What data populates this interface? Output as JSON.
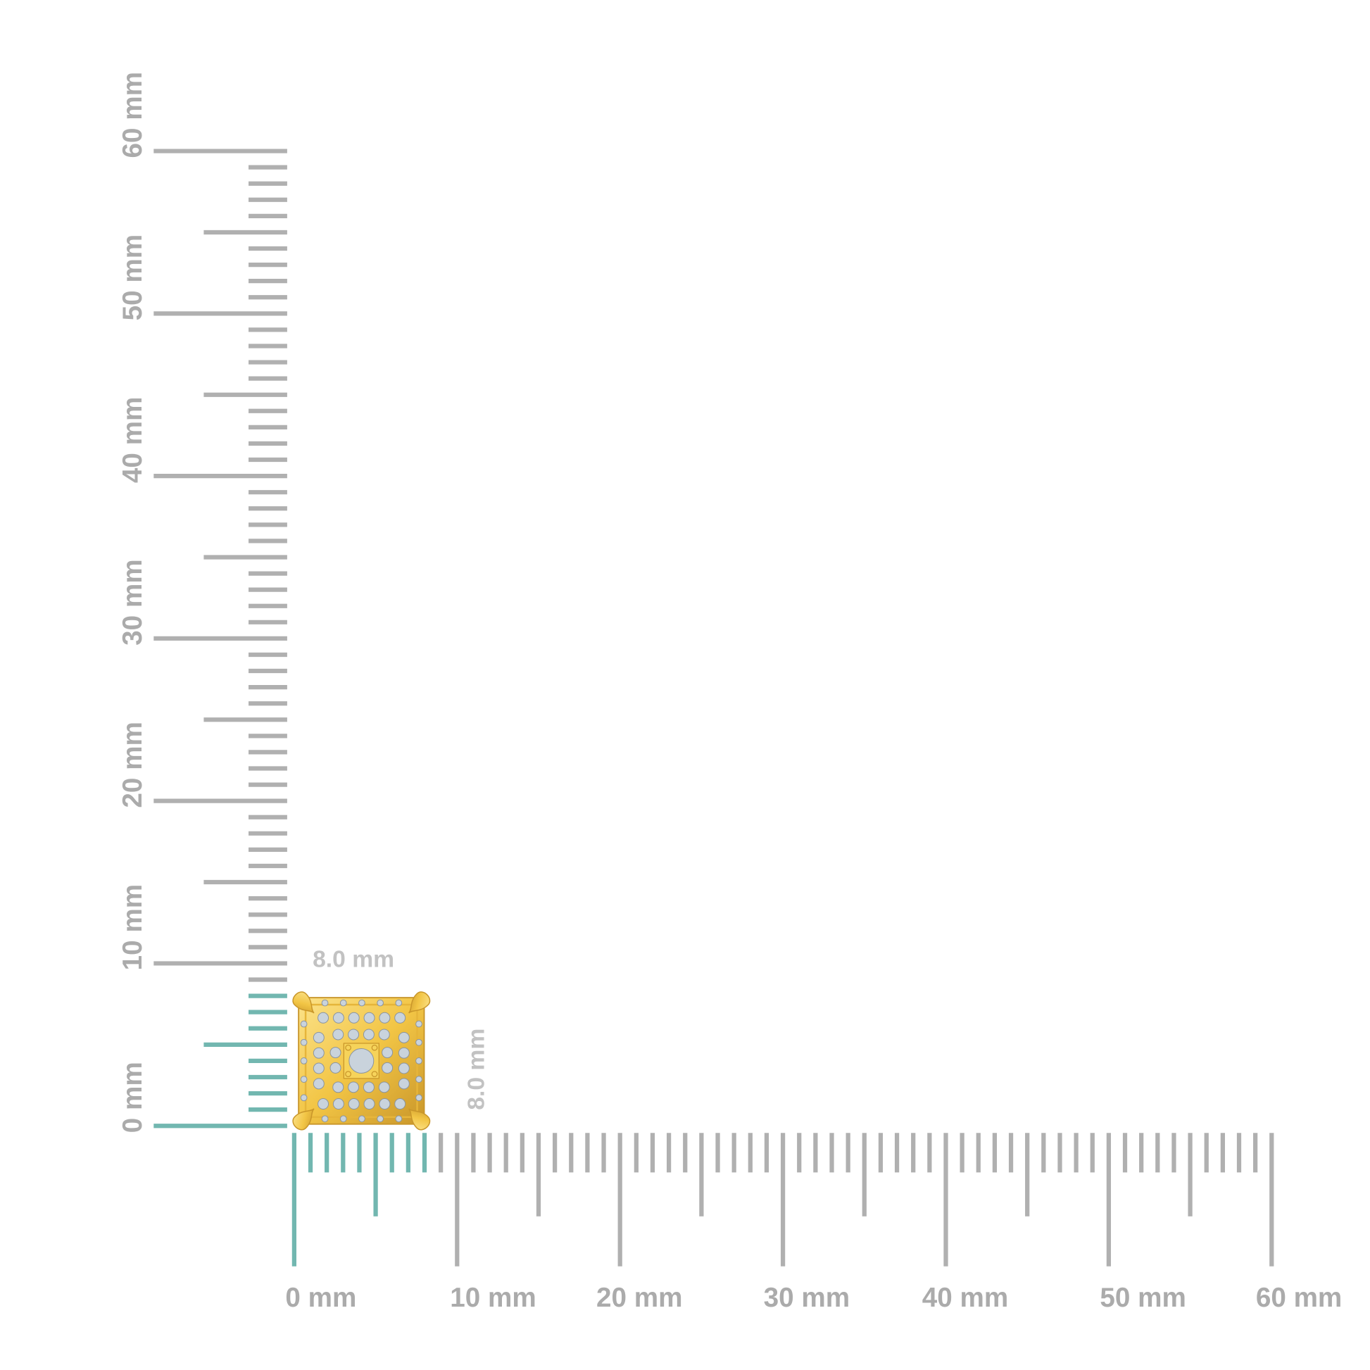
{
  "colors": {
    "tick": "#b0b0b0",
    "highlight": "#72b7b0",
    "label": "#ababab",
    "dimension_label": "#c2c2c2",
    "gold": "#f2c545",
    "gold_dark": "#c9962a",
    "diamond": "#c9d3dc"
  },
  "ruler": {
    "unit": "mm",
    "min": 0,
    "max": 60,
    "highlight_max": 8,
    "vertical_labels": [
      "0 mm",
      "10 mm",
      "20 mm",
      "30 mm",
      "40 mm",
      "50 mm",
      "60 mm"
    ],
    "horizontal_labels": [
      "0 mm",
      "10 mm",
      "20 mm",
      "30 mm",
      "40 mm",
      "50 mm",
      "60 mm"
    ]
  },
  "product": {
    "width_label": "8.0 mm",
    "height_label": "8.0 mm"
  }
}
